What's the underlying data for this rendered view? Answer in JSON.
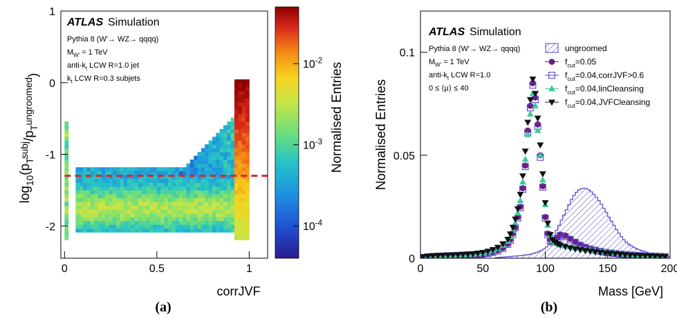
{
  "panel_labels": [
    "(a)",
    "(b)"
  ],
  "chart_data": [
    {
      "type": "heatmap",
      "panel": "(a)",
      "brand": "ATLAS",
      "brand_suffix": "Simulation",
      "annotations": [
        "Pythia 8 (W'→ WZ→ qqqq)",
        "M_{W'} = 1 TeV",
        "anti-k_{t} LCW R=1.0 jet",
        "k_{t} LCW R=0.3 subjets"
      ],
      "xlabel": "corrJVF",
      "ylabel": "log_{10}(p_{T}^{subj}/p_{T}^{ungroomed})",
      "zlabel": "Normalised Entries",
      "xlim": [
        -0.02,
        1.1
      ],
      "ylim": [
        -2.45,
        1.0
      ],
      "zlim": [
        4e-05,
        0.05
      ],
      "x_ticks": [
        0,
        0.5,
        1
      ],
      "y_ticks": [
        -2,
        -1,
        0,
        1
      ],
      "z_ticks": [
        {
          "value": 0.01,
          "label": "10^{-2}"
        },
        {
          "value": 0.001,
          "label": "10^{-3}"
        },
        {
          "value": 0.0001,
          "label": "10^{-4}"
        }
      ],
      "z_log": true,
      "threshold_line": {
        "y": -1.3,
        "style": "dashed",
        "color": "#d62728"
      },
      "colormap": [
        "#2b1b8f",
        "#1f4fd0",
        "#1e8fe0",
        "#26c3c8",
        "#6fdf7a",
        "#c8e646",
        "#f6d21f",
        "#f58a16",
        "#d8261b",
        "#8b0000"
      ]
    },
    {
      "type": "line",
      "panel": "(b)",
      "brand": "ATLAS",
      "brand_suffix": "Simulation",
      "annotations": [
        "Pythia 8 (W'→ WZ→ qqqq)",
        "M_{W'} = 1 TeV",
        "anti-k_{t} LCW R=1.0",
        "0 ≤ ⟨μ⟩ ≤ 40"
      ],
      "xlabel": "Mass [GeV]",
      "ylabel": "Normalised Entries",
      "xlim": [
        0,
        200
      ],
      "ylim": [
        0,
        0.12
      ],
      "x_ticks": [
        0,
        50,
        100,
        150,
        200
      ],
      "y_ticks": [
        {
          "value": 0,
          "label": "0"
        },
        {
          "value": 0.05,
          "label": "0.05"
        },
        {
          "value": 0.1,
          "label": "0.1"
        }
      ],
      "legend_position": "top-right",
      "legend": [
        {
          "label": "ungroomed",
          "marker": "hatched-box",
          "color": "#5b3fcf"
        },
        {
          "label": "f_{cut}=0.05",
          "marker": "circle",
          "color": "#6a1f7a"
        },
        {
          "label": "f_{cut}=0.04,corrJVF>0.6",
          "marker": "open-square",
          "color": "#5b3fcf"
        },
        {
          "label": "f_{cut}=0.04,linCleansing",
          "marker": "triangle-up",
          "color": "#3cc9a0"
        },
        {
          "label": "f_{cut}=0.04,JVFCleansing",
          "marker": "triangle-down",
          "color": "#111111"
        }
      ],
      "series": [
        {
          "name": "ungroomed",
          "render": "hatched-step",
          "color": "#5b3fcf",
          "bin_edges": [
            60,
            62,
            64,
            66,
            68,
            70,
            72,
            74,
            76,
            78,
            80,
            82,
            84,
            86,
            88,
            90,
            92,
            94,
            96,
            98,
            100,
            102,
            104,
            106,
            108,
            110,
            112,
            114,
            116,
            118,
            120,
            122,
            124,
            126,
            128,
            130,
            132,
            134,
            136,
            138,
            140,
            142,
            144,
            146,
            148,
            150,
            152,
            154,
            156,
            158,
            160,
            162,
            164,
            166,
            168,
            170,
            172,
            174,
            176,
            178,
            180,
            182,
            184,
            186,
            188,
            190,
            192,
            194,
            196,
            198,
            200
          ],
          "values": [
            0.0003,
            0.0004,
            0.0005,
            0.0006,
            0.0007,
            0.0008,
            0.0009,
            0.001,
            0.0011,
            0.0012,
            0.0013,
            0.0015,
            0.0016,
            0.0018,
            0.0021,
            0.0024,
            0.0028,
            0.0033,
            0.0038,
            0.0045,
            0.0055,
            0.0068,
            0.0085,
            0.011,
            0.0135,
            0.016,
            0.0185,
            0.021,
            0.0235,
            0.026,
            0.0285,
            0.0305,
            0.032,
            0.0332,
            0.0338,
            0.034,
            0.0338,
            0.0332,
            0.0322,
            0.031,
            0.0296,
            0.028,
            0.0262,
            0.0242,
            0.0222,
            0.02,
            0.018,
            0.016,
            0.014,
            0.0122,
            0.0105,
            0.009,
            0.0078,
            0.0068,
            0.006,
            0.0053,
            0.0047,
            0.0042,
            0.0038,
            0.0034,
            0.003,
            0.0026,
            0.0023,
            0.002,
            0.0017,
            0.0015,
            0.0013,
            0.0011,
            0.001,
            0.0009
          ]
        },
        {
          "name": "f_{cut}=0.05",
          "marker": "circle",
          "color": "#6a1f7a",
          "x": [
            2,
            6,
            10,
            14,
            18,
            22,
            26,
            30,
            34,
            38,
            42,
            46,
            50,
            54,
            58,
            62,
            66,
            70,
            72,
            74,
            76,
            78,
            80,
            82,
            84,
            86,
            88,
            90,
            92,
            94,
            96,
            98,
            100,
            102,
            104,
            106,
            108,
            110,
            112,
            116,
            120,
            124,
            128,
            132,
            136,
            140,
            144,
            148,
            152,
            156,
            160,
            164,
            168,
            172,
            176,
            180,
            184,
            188,
            192,
            196
          ],
          "y": [
            0.0005,
            0.0008,
            0.001,
            0.001,
            0.0012,
            0.0013,
            0.0014,
            0.0015,
            0.0016,
            0.0017,
            0.0018,
            0.0019,
            0.0021,
            0.0025,
            0.003,
            0.0038,
            0.005,
            0.007,
            0.009,
            0.012,
            0.015,
            0.02,
            0.025,
            0.034,
            0.045,
            0.062,
            0.074,
            0.085,
            0.078,
            0.065,
            0.05,
            0.035,
            0.02,
            0.012,
            0.009,
            0.008,
            0.0085,
            0.01,
            0.0115,
            0.011,
            0.0095,
            0.008,
            0.0065,
            0.0055,
            0.0047,
            0.004,
            0.0035,
            0.003,
            0.0027,
            0.0024,
            0.0021,
            0.0019,
            0.0017,
            0.0015,
            0.0013,
            0.0012,
            0.0011,
            0.001,
            0.0009,
            0.0008
          ]
        },
        {
          "name": "f_{cut}=0.04,corrJVF>0.6",
          "marker": "open-square",
          "color": "#5b3fcf",
          "x": [
            2,
            6,
            10,
            14,
            18,
            22,
            26,
            30,
            34,
            38,
            42,
            46,
            50,
            54,
            58,
            62,
            66,
            70,
            72,
            74,
            76,
            78,
            80,
            82,
            84,
            86,
            88,
            90,
            92,
            94,
            96,
            98,
            100,
            102,
            104,
            106,
            108,
            110,
            112,
            116,
            120,
            124,
            128,
            132,
            136,
            140,
            144,
            148,
            152,
            156,
            160,
            164,
            168,
            172,
            176,
            180,
            184,
            188,
            192,
            196
          ],
          "y": [
            0.0004,
            0.0007,
            0.0009,
            0.001,
            0.0011,
            0.0012,
            0.0013,
            0.0014,
            0.0015,
            0.0016,
            0.0017,
            0.0018,
            0.002,
            0.0023,
            0.0028,
            0.0035,
            0.0047,
            0.0067,
            0.0086,
            0.0115,
            0.0148,
            0.0195,
            0.0245,
            0.0335,
            0.0445,
            0.061,
            0.073,
            0.084,
            0.077,
            0.064,
            0.049,
            0.0345,
            0.0195,
            0.0115,
            0.0087,
            0.0078,
            0.0082,
            0.0097,
            0.011,
            0.0105,
            0.0091,
            0.0077,
            0.0063,
            0.0053,
            0.0045,
            0.0039,
            0.0034,
            0.0029,
            0.0026,
            0.0023,
            0.002,
            0.0018,
            0.0016,
            0.0014,
            0.0013,
            0.0012,
            0.0011,
            0.001,
            0.0009,
            0.0008
          ]
        },
        {
          "name": "f_{cut}=0.04,linCleansing",
          "marker": "triangle-up",
          "color": "#3cc9a0",
          "x": [
            2,
            6,
            10,
            14,
            18,
            22,
            26,
            30,
            34,
            38,
            42,
            46,
            50,
            54,
            58,
            62,
            66,
            70,
            72,
            74,
            76,
            78,
            80,
            82,
            84,
            86,
            88,
            90,
            92,
            94,
            96,
            98,
            100,
            102,
            104,
            106,
            108,
            110,
            112,
            116,
            120,
            124,
            128,
            132,
            136,
            140,
            144,
            148,
            152,
            156,
            160,
            164,
            168,
            172,
            176,
            180,
            184,
            188,
            192,
            196
          ],
          "y": [
            0.0006,
            0.0009,
            0.0011,
            0.0012,
            0.0013,
            0.0014,
            0.0015,
            0.0016,
            0.0018,
            0.0019,
            0.002,
            0.0022,
            0.0025,
            0.003,
            0.0037,
            0.0047,
            0.0062,
            0.0082,
            0.0105,
            0.0135,
            0.017,
            0.022,
            0.028,
            0.037,
            0.048,
            0.06,
            0.07,
            0.08,
            0.074,
            0.062,
            0.05,
            0.038,
            0.026,
            0.016,
            0.011,
            0.0085,
            0.0075,
            0.007,
            0.0065,
            0.006,
            0.0055,
            0.005,
            0.0047,
            0.0043,
            0.004,
            0.0037,
            0.0034,
            0.0031,
            0.0028,
            0.0025,
            0.0022,
            0.002,
            0.0018,
            0.0016,
            0.0015,
            0.0014,
            0.0013,
            0.0012,
            0.0011,
            0.001
          ]
        },
        {
          "name": "f_{cut}=0.04,JVFCleansing",
          "marker": "triangle-down",
          "color": "#111111",
          "x": [
            2,
            6,
            10,
            14,
            18,
            22,
            26,
            30,
            34,
            38,
            42,
            46,
            50,
            54,
            58,
            62,
            66,
            70,
            72,
            74,
            76,
            78,
            80,
            82,
            84,
            86,
            88,
            90,
            92,
            94,
            96,
            98,
            100,
            102,
            104,
            106,
            108,
            110,
            112,
            116,
            120,
            124,
            128,
            132,
            136,
            140,
            144,
            148,
            152,
            156,
            160,
            164,
            168,
            172,
            176,
            180,
            184,
            188,
            192,
            196
          ],
          "y": [
            0.0007,
            0.001,
            0.0012,
            0.0013,
            0.0014,
            0.0015,
            0.0016,
            0.0017,
            0.0019,
            0.002,
            0.0022,
            0.0025,
            0.0028,
            0.0034,
            0.0042,
            0.0053,
            0.007,
            0.0092,
            0.0118,
            0.015,
            0.019,
            0.024,
            0.031,
            0.04,
            0.052,
            0.066,
            0.077,
            0.087,
            0.08,
            0.068,
            0.055,
            0.041,
            0.027,
            0.017,
            0.0115,
            0.009,
            0.0078,
            0.007,
            0.0064,
            0.0057,
            0.005,
            0.0045,
            0.0041,
            0.0037,
            0.0034,
            0.0031,
            0.0028,
            0.0025,
            0.0023,
            0.0021,
            0.0019,
            0.0017,
            0.0015,
            0.0014,
            0.0013,
            0.0012,
            0.0011,
            0.001,
            0.0009,
            0.0008
          ]
        }
      ]
    }
  ]
}
